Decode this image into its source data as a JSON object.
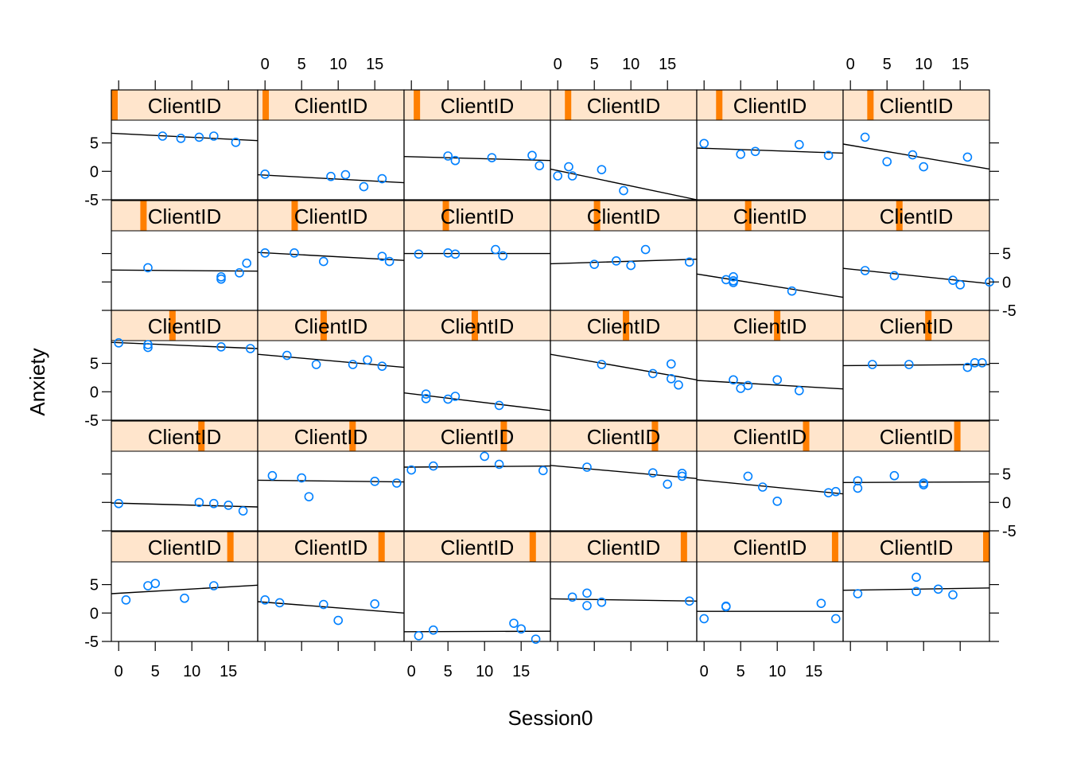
{
  "chart_data": {
    "type": "scatter",
    "layout": {
      "columns": 6,
      "rows": 5
    },
    "xlabel": "Session0",
    "ylabel": "Anxiety",
    "strip_label": "ClientID",
    "xlim": [
      -1,
      19
    ],
    "ylim": [
      -5,
      9
    ],
    "x_ticks": [
      0,
      5,
      10,
      15
    ],
    "y_ticks": [
      -5,
      0,
      5
    ],
    "point_color": "#0080ff",
    "strip_fill": "#ffe5cc",
    "strip_indicator_color": "#ff7f00",
    "fit_line_color": "#000000",
    "panels": [
      {
        "client": 1,
        "points": [
          [
            6,
            6.2
          ],
          [
            8.5,
            5.8
          ],
          [
            11,
            6
          ],
          [
            13,
            6.2
          ],
          [
            16,
            5.1
          ]
        ],
        "fit": [
          6.7,
          5.4
        ]
      },
      {
        "client": 2,
        "points": [
          [
            0,
            -0.5
          ],
          [
            9,
            -0.9
          ],
          [
            11,
            -0.6
          ],
          [
            13.5,
            -2.7
          ],
          [
            16,
            -1.3
          ]
        ],
        "fit": [
          -0.6,
          -2
        ]
      },
      {
        "client": 3,
        "points": [
          [
            5,
            2.7
          ],
          [
            6,
            1.9
          ],
          [
            11,
            2.4
          ],
          [
            16.5,
            2.8
          ],
          [
            17.5,
            1
          ]
        ],
        "fit": [
          2.6,
          1.9
        ]
      },
      {
        "client": 4,
        "points": [
          [
            0,
            -0.8
          ],
          [
            1.5,
            0.8
          ],
          [
            2,
            -0.8
          ],
          [
            6,
            0.3
          ],
          [
            9,
            -3.4
          ]
        ],
        "fit": [
          0.4,
          -5
        ]
      },
      {
        "client": 5,
        "points": [
          [
            0,
            4.9
          ],
          [
            5,
            3
          ],
          [
            7,
            3.5
          ],
          [
            13,
            4.7
          ],
          [
            17,
            2.8
          ]
        ],
        "fit": [
          4.1,
          3.2
        ]
      },
      {
        "client": 6,
        "points": [
          [
            2,
            6
          ],
          [
            5,
            1.7
          ],
          [
            8.5,
            2.9
          ],
          [
            10,
            0.8
          ],
          [
            16,
            2.5
          ]
        ],
        "fit": [
          4.8,
          0.4
        ]
      },
      {
        "client": 7,
        "points": [
          [
            4,
            2.5
          ],
          [
            14,
            0.5
          ],
          [
            14,
            0.9
          ],
          [
            16.5,
            1.6
          ],
          [
            17.5,
            3.3
          ]
        ],
        "fit": [
          2.1,
          1.9
        ]
      },
      {
        "client": 8,
        "points": [
          [
            0,
            5.1
          ],
          [
            4,
            5.1
          ],
          [
            8,
            3.6
          ],
          [
            16,
            4.5
          ],
          [
            17,
            3.6
          ]
        ],
        "fit": [
          5.2,
          3.8
        ]
      },
      {
        "client": 9,
        "points": [
          [
            1,
            4.9
          ],
          [
            5,
            5.1
          ],
          [
            6,
            4.9
          ],
          [
            11.5,
            5.7
          ],
          [
            12.5,
            4.6
          ]
        ],
        "fit": [
          5,
          5
        ]
      },
      {
        "client": 10,
        "points": [
          [
            5,
            3.1
          ],
          [
            8,
            3.7
          ],
          [
            10,
            2.9
          ],
          [
            12,
            5.7
          ],
          [
            18,
            3.5
          ]
        ],
        "fit": [
          3.2,
          4
        ]
      },
      {
        "client": 11,
        "points": [
          [
            3,
            0.4
          ],
          [
            4,
            0.9
          ],
          [
            4,
            0.2
          ],
          [
            4,
            -0.1
          ],
          [
            12,
            -1.6
          ]
        ],
        "fit": [
          1.4,
          -2.7
        ]
      },
      {
        "client": 12,
        "points": [
          [
            2,
            2
          ],
          [
            6,
            1.1
          ],
          [
            14,
            0.3
          ],
          [
            15,
            -0.5
          ],
          [
            19,
            0
          ]
        ],
        "fit": [
          2.4,
          -0.3
        ]
      },
      {
        "client": 13,
        "points": [
          [
            0,
            8.6
          ],
          [
            4,
            8.3
          ],
          [
            4,
            7.8
          ],
          [
            14,
            7.9
          ],
          [
            18,
            7.6
          ]
        ],
        "fit": [
          8.7,
          7.6
        ]
      },
      {
        "client": 14,
        "points": [
          [
            3,
            6.4
          ],
          [
            7,
            4.8
          ],
          [
            12,
            4.8
          ],
          [
            14,
            5.6
          ],
          [
            16,
            4.5
          ]
        ],
        "fit": [
          6.6,
          4.3
        ]
      },
      {
        "client": 15,
        "points": [
          [
            2,
            -0.4
          ],
          [
            2,
            -1.2
          ],
          [
            5,
            -1.3
          ],
          [
            6,
            -0.8
          ],
          [
            12,
            -2.4
          ]
        ],
        "fit": [
          -0.2,
          -3.3
        ]
      },
      {
        "client": 16,
        "points": [
          [
            6,
            4.8
          ],
          [
            13,
            3.2
          ],
          [
            15.5,
            4.9
          ],
          [
            15.5,
            2.3
          ],
          [
            16.5,
            1.2
          ]
        ],
        "fit": [
          6.6,
          2.1
        ]
      },
      {
        "client": 17,
        "points": [
          [
            4,
            2.1
          ],
          [
            5,
            0.6
          ],
          [
            6,
            1.1
          ],
          [
            10,
            2.1
          ],
          [
            13,
            0.2
          ]
        ],
        "fit": [
          2,
          0.5
        ]
      },
      {
        "client": 18,
        "points": [
          [
            3,
            4.8
          ],
          [
            8,
            4.8
          ],
          [
            16,
            4.3
          ],
          [
            17,
            5.1
          ],
          [
            18,
            5.1
          ]
        ],
        "fit": [
          4.6,
          4.8
        ]
      },
      {
        "client": 19,
        "points": [
          [
            0,
            -0.2
          ],
          [
            11,
            0
          ],
          [
            13,
            -0.2
          ],
          [
            15,
            -0.5
          ],
          [
            17,
            -1.5
          ]
        ],
        "fit": [
          -0.1,
          -0.8
        ]
      },
      {
        "client": 20,
        "points": [
          [
            1,
            4.7
          ],
          [
            5,
            4.3
          ],
          [
            6,
            1
          ],
          [
            15,
            3.7
          ],
          [
            18,
            3.4
          ]
        ],
        "fit": [
          3.9,
          3.6
        ]
      },
      {
        "client": 21,
        "points": [
          [
            0,
            5.7
          ],
          [
            3,
            6.4
          ],
          [
            10,
            8.1
          ],
          [
            12,
            6.7
          ],
          [
            18,
            5.6
          ]
        ],
        "fit": [
          6.2,
          6.4
        ]
      },
      {
        "client": 22,
        "points": [
          [
            4,
            6.2
          ],
          [
            13,
            5.2
          ],
          [
            15,
            3.2
          ],
          [
            17,
            4.6
          ],
          [
            17,
            5.1
          ]
        ],
        "fit": [
          6.5,
          4.2
        ]
      },
      {
        "client": 23,
        "points": [
          [
            6,
            4.6
          ],
          [
            8,
            2.7
          ],
          [
            10,
            0.2
          ],
          [
            17,
            1.7
          ],
          [
            18,
            1.9
          ]
        ],
        "fit": [
          4,
          1.5
        ]
      },
      {
        "client": 24,
        "points": [
          [
            1,
            3.8
          ],
          [
            1,
            2.5
          ],
          [
            6,
            4.7
          ],
          [
            10,
            3.4
          ],
          [
            10,
            3.1
          ]
        ],
        "fit": [
          3.5,
          3.6
        ]
      },
      {
        "client": 25,
        "points": [
          [
            1,
            2.3
          ],
          [
            4,
            4.8
          ],
          [
            5,
            5.2
          ],
          [
            9,
            2.6
          ],
          [
            13,
            4.8
          ]
        ],
        "fit": [
          3.4,
          4.9
        ]
      },
      {
        "client": 26,
        "points": [
          [
            0,
            2.3
          ],
          [
            2,
            1.8
          ],
          [
            8,
            1.5
          ],
          [
            10,
            -1.3
          ],
          [
            15,
            1.6
          ]
        ],
        "fit": [
          2,
          0
        ]
      },
      {
        "client": 27,
        "points": [
          [
            1,
            -4
          ],
          [
            3,
            -3
          ],
          [
            14,
            -1.8
          ],
          [
            15,
            -2.8
          ],
          [
            17,
            -4.6
          ]
        ],
        "fit": [
          -3.3,
          -3.2
        ]
      },
      {
        "client": 28,
        "points": [
          [
            2,
            2.8
          ],
          [
            4,
            3.5
          ],
          [
            4,
            1.3
          ],
          [
            6,
            1.9
          ],
          [
            18,
            2.1
          ]
        ],
        "fit": [
          2.5,
          2.1
        ]
      },
      {
        "client": 29,
        "points": [
          [
            0,
            -1
          ],
          [
            3,
            1.2
          ],
          [
            3,
            1.1
          ],
          [
            16,
            1.7
          ],
          [
            18,
            -1
          ]
        ],
        "fit": [
          0.3,
          0.3
        ]
      },
      {
        "client": 30,
        "points": [
          [
            1,
            3.4
          ],
          [
            9,
            6.3
          ],
          [
            9,
            3.8
          ],
          [
            12,
            4.2
          ],
          [
            14,
            3.2
          ]
        ],
        "fit": [
          4,
          4.4
        ]
      }
    ]
  }
}
